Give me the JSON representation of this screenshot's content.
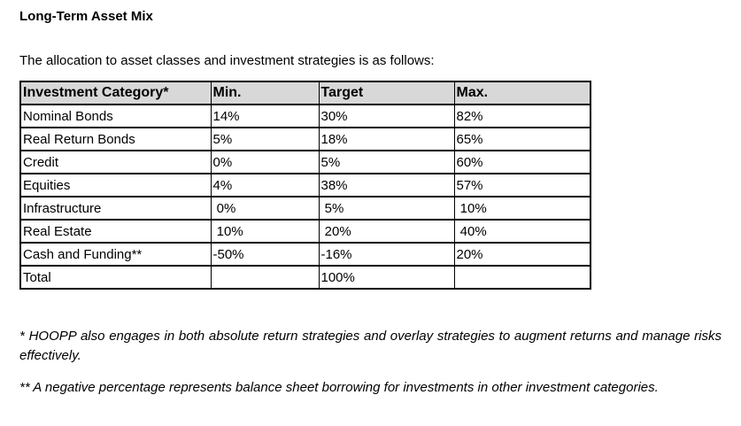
{
  "page": {
    "title": "Long-Term Asset Mix",
    "intro": "The allocation to asset classes and investment strategies is as follows:"
  },
  "table": {
    "header_bg": "#d8d8d8",
    "border_color": "#000000",
    "headers": [
      "Investment Category*",
      "Min.",
      "Target",
      "Max."
    ],
    "rows": [
      {
        "category": "Nominal Bonds",
        "min": "14%",
        "target": "30%",
        "max": "82%"
      },
      {
        "category": "Real Return Bonds",
        "min": "5%",
        "target": "18%",
        "max": "65%"
      },
      {
        "category": "Credit",
        "min": "0%",
        "target": "5%",
        "max": "60%"
      },
      {
        "category": "Equities",
        "min": "4%",
        "target": "38%",
        "max": "57%"
      },
      {
        "category": "Infrastructure",
        "min": " 0%",
        "target": " 5%",
        "max": " 10%"
      },
      {
        "category": "Real Estate",
        "min": " 10%",
        "target": " 20%",
        "max": " 40%"
      },
      {
        "category": "Cash and Funding**",
        "min": "-50%",
        "target": "-16%",
        "max": "20%"
      },
      {
        "category": "Total",
        "min": "",
        "target": "100%",
        "max": ""
      }
    ]
  },
  "footnotes": [
    "* HOOPP also engages in both absolute return strategies and overlay strategies to augment returns and manage risks effectively.",
    "** A negative percentage represents balance sheet borrowing for investments in other investment categories."
  ]
}
